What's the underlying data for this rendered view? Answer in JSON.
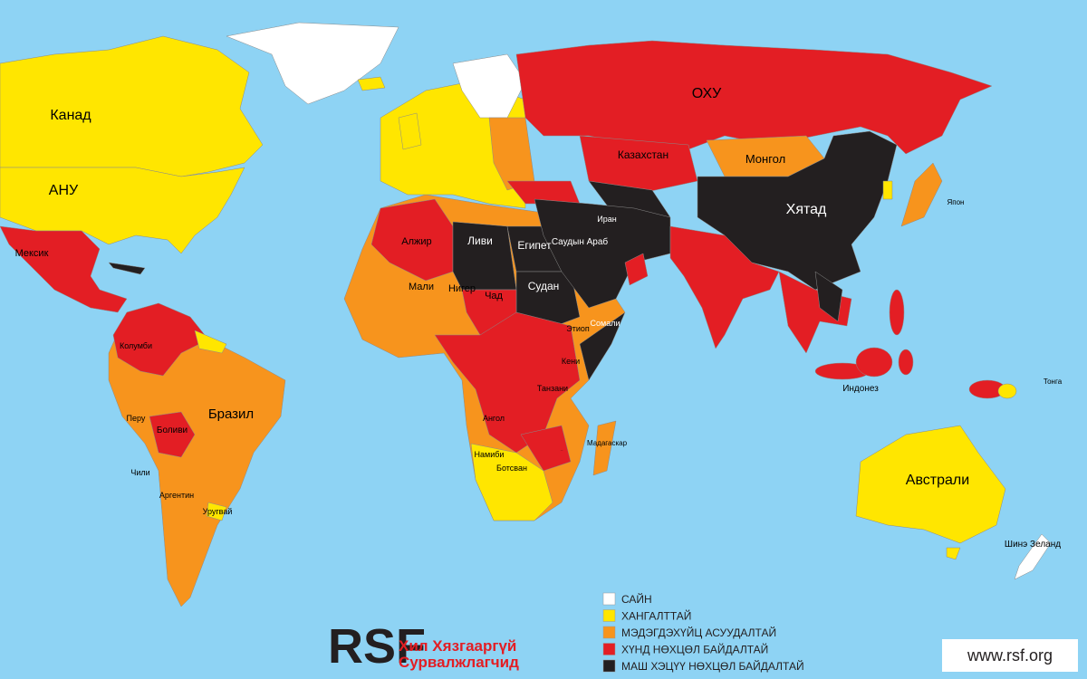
{
  "map": {
    "countries": [
      "Канад",
      "АНУ",
      "Мексик",
      "Бразил",
      "Боливи",
      "Колумби",
      "Перу",
      "Аргентин",
      "Чили",
      "Уругвай",
      "ОХУ",
      "Казахстан",
      "Монгол",
      "Хятад",
      "Ливи",
      "Египет",
      "Алжир",
      "Мали",
      "Нигер",
      "Чад",
      "Судан",
      "Саудын Араб",
      "Иран",
      "Этиоп",
      "Сомали",
      "Кени",
      "Ангол",
      "Намиби",
      "Ботсван",
      "Танзани",
      "Мадагаскар",
      "Индонез",
      "Австрали",
      "Шинэ Зеланд",
      "Япон",
      "Тонга",
      "Кени"
    ]
  },
  "legend": {
    "items": [
      {
        "label": "САЙН",
        "color": "#ffffff"
      },
      {
        "label": "ХАНГАЛТТАЙ",
        "color": "#ffe600"
      },
      {
        "label": "МЭДЭГДЭХҮЙЦ АСУУДАЛТАЙ",
        "color": "#f7941d"
      },
      {
        "label": "ХҮНД НӨХЦӨЛ БАЙДАЛТАЙ",
        "color": "#e31e24"
      },
      {
        "label": "МАШ ХЭЦҮҮ НӨХЦӨЛ БАЙДАЛТАЙ",
        "color": "#231f20"
      }
    ]
  },
  "logo": {
    "mark": "RSF",
    "line1": "Хил Хязгааргүй",
    "line2": "Сурвалжлагчид"
  },
  "url": "www.rsf.org"
}
